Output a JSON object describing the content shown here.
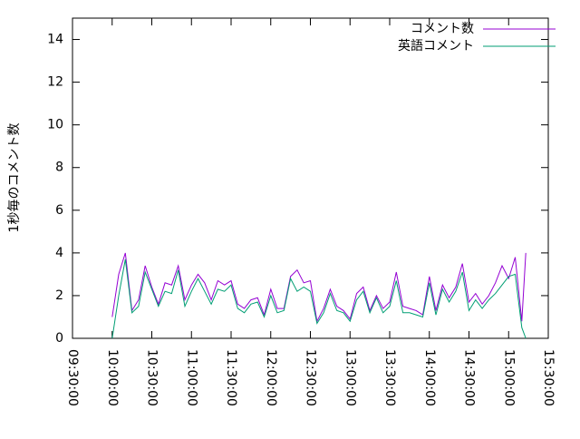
{
  "chart_data": {
    "type": "line",
    "ylabel": "1秒毎のコメント数",
    "x": [
      "10:00:00",
      "10:05:00",
      "10:10:00",
      "10:15:00",
      "10:20:00",
      "10:25:00",
      "10:30:00",
      "10:35:00",
      "10:40:00",
      "10:45:00",
      "10:50:00",
      "10:55:00",
      "11:00:00",
      "11:05:00",
      "11:10:00",
      "11:15:00",
      "11:20:00",
      "11:25:00",
      "11:30:00",
      "11:35:00",
      "11:40:00",
      "11:45:00",
      "11:50:00",
      "11:55:00",
      "12:00:00",
      "12:05:00",
      "12:10:00",
      "12:15:00",
      "12:20:00",
      "12:25:00",
      "12:30:00",
      "12:35:00",
      "12:40:00",
      "12:45:00",
      "12:50:00",
      "12:55:00",
      "13:00:00",
      "13:05:00",
      "13:10:00",
      "13:15:00",
      "13:20:00",
      "13:25:00",
      "13:30:00",
      "13:35:00",
      "13:40:00",
      "13:45:00",
      "13:50:00",
      "13:55:00",
      "14:00:00",
      "14:05:00",
      "14:10:00",
      "14:15:00",
      "14:20:00",
      "14:25:00",
      "14:30:00",
      "14:35:00",
      "14:40:00",
      "14:45:00",
      "14:50:00",
      "14:55:00",
      "15:00:00",
      "15:05:00",
      "15:10:00",
      "15:13:00"
    ],
    "series": [
      {
        "name": "コメント数",
        "color": "#9400d3",
        "values": [
          1.0,
          3.0,
          4.0,
          1.3,
          1.8,
          3.4,
          2.4,
          1.6,
          2.6,
          2.5,
          3.4,
          1.8,
          2.5,
          3.0,
          2.6,
          1.8,
          2.7,
          2.5,
          2.7,
          1.6,
          1.4,
          1.8,
          1.9,
          1.1,
          2.3,
          1.4,
          1.4,
          2.9,
          3.2,
          2.6,
          2.7,
          0.8,
          1.4,
          2.3,
          1.5,
          1.3,
          0.9,
          2.1,
          2.4,
          1.3,
          2.0,
          1.4,
          1.7,
          3.1,
          1.5,
          1.4,
          1.3,
          1.1,
          2.9,
          1.3,
          2.5,
          1.9,
          2.4,
          3.5,
          1.7,
          2.1,
          1.6,
          2.0,
          2.6,
          3.4,
          2.8,
          3.8,
          0.8,
          4.0
        ]
      },
      {
        "name": "英語コメント",
        "color": "#009e73",
        "values": [
          0.0,
          2.0,
          3.7,
          1.2,
          1.5,
          3.1,
          2.3,
          1.5,
          2.2,
          2.1,
          3.2,
          1.5,
          2.2,
          2.8,
          2.2,
          1.6,
          2.3,
          2.2,
          2.5,
          1.4,
          1.2,
          1.6,
          1.7,
          1.0,
          2.0,
          1.2,
          1.3,
          2.8,
          2.2,
          2.4,
          2.2,
          0.7,
          1.2,
          2.1,
          1.3,
          1.2,
          0.8,
          1.8,
          2.2,
          1.2,
          1.9,
          1.2,
          1.5,
          2.7,
          1.2,
          1.2,
          1.1,
          1.0,
          2.6,
          1.1,
          2.3,
          1.7,
          2.2,
          3.1,
          1.3,
          1.8,
          1.4,
          1.8,
          2.1,
          2.5,
          2.9,
          3.0,
          0.5,
          0.0
        ]
      }
    ],
    "xlim": [
      "09:30:00",
      "15:30:00"
    ],
    "xticks": [
      "09:30:00",
      "10:00:00",
      "10:30:00",
      "11:00:00",
      "11:30:00",
      "12:00:00",
      "12:30:00",
      "13:00:00",
      "13:30:00",
      "14:00:00",
      "14:30:00",
      "15:00:00",
      "15:30:00"
    ],
    "ylim": [
      0,
      15
    ],
    "yticks": [
      0,
      2,
      4,
      6,
      8,
      10,
      12,
      14
    ],
    "legend": "top-right"
  }
}
